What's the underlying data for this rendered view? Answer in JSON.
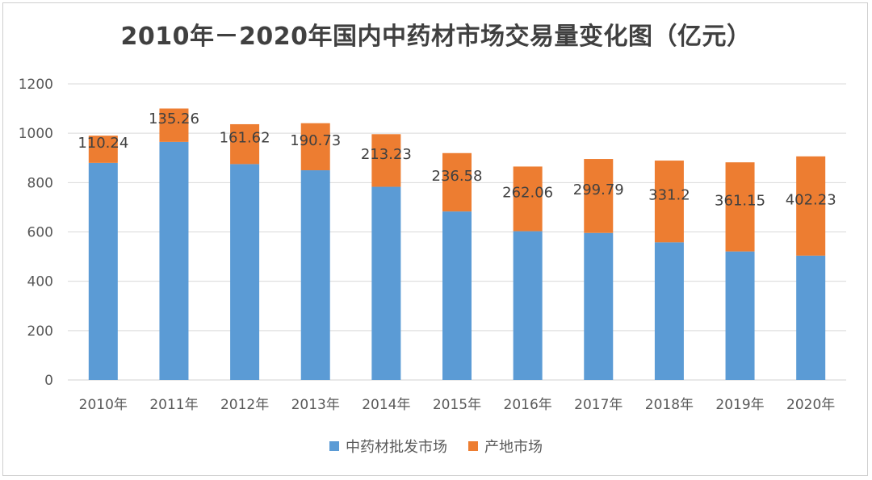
{
  "chart_data": {
    "type": "bar",
    "stacked": true,
    "title": "2010年－2020年国内中药材市场交易量变化图（亿元）",
    "categories": [
      "2010年",
      "2011年",
      "2012年",
      "2013年",
      "2014年",
      "2015年",
      "2016年",
      "2017年",
      "2018年",
      "2019年",
      "2020年"
    ],
    "series": [
      {
        "name": "中药材批发市场",
        "color": "#5b9bd5",
        "values": [
          880,
          965,
          875,
          850,
          783,
          683,
          603,
          596,
          558,
          521,
          504
        ]
      },
      {
        "name": "产地市场",
        "color": "#ed7d31",
        "values": [
          110.24,
          135.26,
          161.62,
          190.73,
          213.23,
          236.58,
          262.06,
          299.79,
          331.2,
          361.15,
          402.23
        ]
      }
    ],
    "data_labels": [
      "110.24",
      "135.26",
      "161.62",
      "190.73",
      "213.23",
      "236.58",
      "262.06",
      "299.79",
      "331.2",
      "361.15",
      "402.23"
    ],
    "y_ticks": [
      "0",
      "200",
      "400",
      "600",
      "800",
      "1000",
      "1200"
    ],
    "ylim": [
      0,
      1200
    ],
    "grid": true,
    "legend_position": "bottom"
  }
}
